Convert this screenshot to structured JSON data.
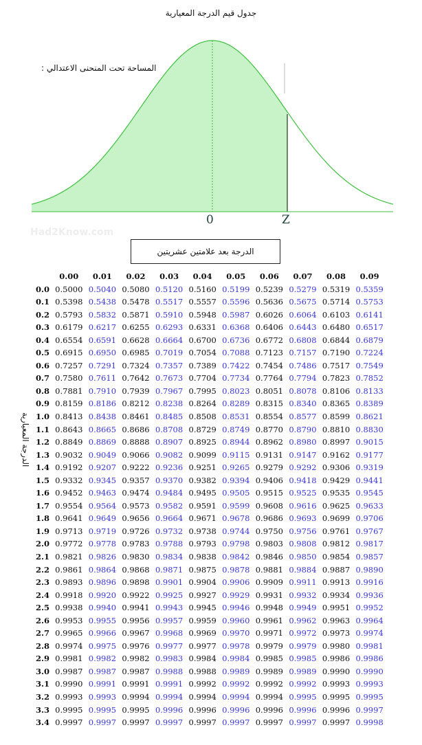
{
  "title": "جدول قيم الدرجة المعيارية",
  "curve_label": "المساحة تحت المنحنى الاعتدالي :",
  "watermark": "Had2Know.com",
  "axis": {
    "zero": "0",
    "z": "Z"
  },
  "note_box": "الدرجة بعد علامتين عشريتين",
  "row_axis_label": "الدرجة المعيارية",
  "colors": {
    "curve_fill": "#c8f2c8",
    "curve_line": "#3fbf3f",
    "odd_column_text": "#3a36d6",
    "even_column_text": "#111111"
  },
  "table": {
    "columns": [
      "0.00",
      "0.01",
      "0.02",
      "0.03",
      "0.04",
      "0.05",
      "0.06",
      "0.07",
      "0.08",
      "0.09"
    ],
    "rows": [
      {
        "z": "0.0",
        "v": [
          "0.5000",
          "0.5040",
          "0.5080",
          "0.5120",
          "0.5160",
          "0.5199",
          "0.5239",
          "0.5279",
          "0.5319",
          "0.5359"
        ]
      },
      {
        "z": "0.1",
        "v": [
          "0.5398",
          "0.5438",
          "0.5478",
          "0.5517",
          "0.5557",
          "0.5596",
          "0.5636",
          "0.5675",
          "0.5714",
          "0.5753"
        ]
      },
      {
        "z": "0.2",
        "v": [
          "0.5793",
          "0.5832",
          "0.5871",
          "0.5910",
          "0.5948",
          "0.5987",
          "0.6026",
          "0.6064",
          "0.6103",
          "0.6141"
        ]
      },
      {
        "z": "0.3",
        "v": [
          "0.6179",
          "0.6217",
          "0.6255",
          "0.6293",
          "0.6331",
          "0.6368",
          "0.6406",
          "0.6443",
          "0.6480",
          "0.6517"
        ]
      },
      {
        "z": "0.4",
        "v": [
          "0.6554",
          "0.6591",
          "0.6628",
          "0.6664",
          "0.6700",
          "0.6736",
          "0.6772",
          "0.6808",
          "0.6844",
          "0.6879"
        ]
      },
      {
        "z": "0.5",
        "v": [
          "0.6915",
          "0.6950",
          "0.6985",
          "0.7019",
          "0.7054",
          "0.7088",
          "0.7123",
          "0.7157",
          "0.7190",
          "0.7224"
        ]
      },
      {
        "z": "0.6",
        "v": [
          "0.7257",
          "0.7291",
          "0.7324",
          "0.7357",
          "0.7389",
          "0.7422",
          "0.7454",
          "0.7486",
          "0.7517",
          "0.7549"
        ]
      },
      {
        "z": "0.7",
        "v": [
          "0.7580",
          "0.7611",
          "0.7642",
          "0.7673",
          "0.7704",
          "0.7734",
          "0.7764",
          "0.7794",
          "0.7823",
          "0.7852"
        ]
      },
      {
        "z": "0.8",
        "v": [
          "0.7881",
          "0.7910",
          "0.7939",
          "0.7967",
          "0.7995",
          "0.8023",
          "0.8051",
          "0.8078",
          "0.8106",
          "0.8133"
        ]
      },
      {
        "z": "0.9",
        "v": [
          "0.8159",
          "0.8186",
          "0.8212",
          "0.8238",
          "0.8264",
          "0.8289",
          "0.8315",
          "0.8340",
          "0.8365",
          "0.8389"
        ]
      },
      {
        "z": "1.0",
        "v": [
          "0.8413",
          "0.8438",
          "0.8461",
          "0.8485",
          "0.8508",
          "0.8531",
          "0.8554",
          "0.8577",
          "0.8599",
          "0.8621"
        ]
      },
      {
        "z": "1.1",
        "v": [
          "0.8643",
          "0.8665",
          "0.8686",
          "0.8708",
          "0.8729",
          "0.8749",
          "0.8770",
          "0.8790",
          "0.8810",
          "0.8830"
        ]
      },
      {
        "z": "1.2",
        "v": [
          "0.8849",
          "0.8869",
          "0.8888",
          "0.8907",
          "0.8925",
          "0.8944",
          "0.8962",
          "0.8980",
          "0.8997",
          "0.9015"
        ]
      },
      {
        "z": "1.3",
        "v": [
          "0.9032",
          "0.9049",
          "0.9066",
          "0.9082",
          "0.9099",
          "0.9115",
          "0.9131",
          "0.9147",
          "0.9162",
          "0.9177"
        ]
      },
      {
        "z": "1.4",
        "v": [
          "0.9192",
          "0.9207",
          "0.9222",
          "0.9236",
          "0.9251",
          "0.9265",
          "0.9279",
          "0.9292",
          "0.9306",
          "0.9319"
        ]
      },
      {
        "z": "1.5",
        "v": [
          "0.9332",
          "0.9345",
          "0.9357",
          "0.9370",
          "0.9382",
          "0.9394",
          "0.9406",
          "0.9418",
          "0.9429",
          "0.9441"
        ]
      },
      {
        "z": "1.6",
        "v": [
          "0.9452",
          "0.9463",
          "0.9474",
          "0.9484",
          "0.9495",
          "0.9505",
          "0.9515",
          "0.9525",
          "0.9535",
          "0.9545"
        ]
      },
      {
        "z": "1.7",
        "v": [
          "0.9554",
          "0.9564",
          "0.9573",
          "0.9582",
          "0.9591",
          "0.9599",
          "0.9608",
          "0.9616",
          "0.9625",
          "0.9633"
        ]
      },
      {
        "z": "1.8",
        "v": [
          "0.9641",
          "0.9649",
          "0.9656",
          "0.9664",
          "0.9671",
          "0.9678",
          "0.9686",
          "0.9693",
          "0.9699",
          "0.9706"
        ]
      },
      {
        "z": "1.9",
        "v": [
          "0.9713",
          "0.9719",
          "0.9726",
          "0.9732",
          "0.9738",
          "0.9744",
          "0.9750",
          "0.9756",
          "0.9761",
          "0.9767"
        ]
      },
      {
        "z": "2.0",
        "v": [
          "0.9772",
          "0.9778",
          "0.9783",
          "0.9788",
          "0.9793",
          "0.9798",
          "0.9803",
          "0.9808",
          "0.9812",
          "0.9817"
        ]
      },
      {
        "z": "2.1",
        "v": [
          "0.9821",
          "0.9826",
          "0.9830",
          "0.9834",
          "0.9838",
          "0.9842",
          "0.9846",
          "0.9850",
          "0.9854",
          "0.9857"
        ]
      },
      {
        "z": "2.2",
        "v": [
          "0.9861",
          "0.9864",
          "0.9868",
          "0.9871",
          "0.9875",
          "0.9878",
          "0.9881",
          "0.9884",
          "0.9887",
          "0.9890"
        ]
      },
      {
        "z": "2.3",
        "v": [
          "0.9893",
          "0.9896",
          "0.9898",
          "0.9901",
          "0.9904",
          "0.9906",
          "0.9909",
          "0.9911",
          "0.9913",
          "0.9916"
        ]
      },
      {
        "z": "2.4",
        "v": [
          "0.9918",
          "0.9920",
          "0.9922",
          "0.9925",
          "0.9927",
          "0.9929",
          "0.9931",
          "0.9932",
          "0.9934",
          "0.9936"
        ]
      },
      {
        "z": "2.5",
        "v": [
          "0.9938",
          "0.9940",
          "0.9941",
          "0.9943",
          "0.9945",
          "0.9946",
          "0.9948",
          "0.9949",
          "0.9951",
          "0.9952"
        ]
      },
      {
        "z": "2.6",
        "v": [
          "0.9953",
          "0.9955",
          "0.9956",
          "0.9957",
          "0.9959",
          "0.9960",
          "0.9961",
          "0.9962",
          "0.9963",
          "0.9964"
        ]
      },
      {
        "z": "2.7",
        "v": [
          "0.9965",
          "0.9966",
          "0.9967",
          "0.9968",
          "0.9969",
          "0.9970",
          "0.9971",
          "0.9972",
          "0.9973",
          "0.9974"
        ]
      },
      {
        "z": "2.8",
        "v": [
          "0.9974",
          "0.9975",
          "0.9976",
          "0.9977",
          "0.9977",
          "0.9978",
          "0.9979",
          "0.9979",
          "0.9980",
          "0.9981"
        ]
      },
      {
        "z": "2.9",
        "v": [
          "0.9981",
          "0.9982",
          "0.9982",
          "0.9983",
          "0.9984",
          "0.9984",
          "0.9985",
          "0.9985",
          "0.9986",
          "0.9986"
        ]
      },
      {
        "z": "3.0",
        "v": [
          "0.9987",
          "0.9987",
          "0.9987",
          "0.9988",
          "0.9988",
          "0.9989",
          "0.9989",
          "0.9989",
          "0.9990",
          "0.9990"
        ]
      },
      {
        "z": "3.1",
        "v": [
          "0.9990",
          "0.9991",
          "0.9991",
          "0.9991",
          "0.9992",
          "0.9992",
          "0.9992",
          "0.9992",
          "0.9993",
          "0.9993"
        ]
      },
      {
        "z": "3.2",
        "v": [
          "0.9993",
          "0.9993",
          "0.9994",
          "0.9994",
          "0.9994",
          "0.9994",
          "0.9994",
          "0.9995",
          "0.9995",
          "0.9995"
        ]
      },
      {
        "z": "3.3",
        "v": [
          "0.9995",
          "0.9995",
          "0.9995",
          "0.9996",
          "0.9996",
          "0.9996",
          "0.9996",
          "0.9996",
          "0.9996",
          "0.9997"
        ]
      },
      {
        "z": "3.4",
        "v": [
          "0.9997",
          "0.9997",
          "0.9997",
          "0.9997",
          "0.9997",
          "0.9997",
          "0.9997",
          "0.9997",
          "0.9997",
          "0.9998"
        ]
      }
    ]
  }
}
